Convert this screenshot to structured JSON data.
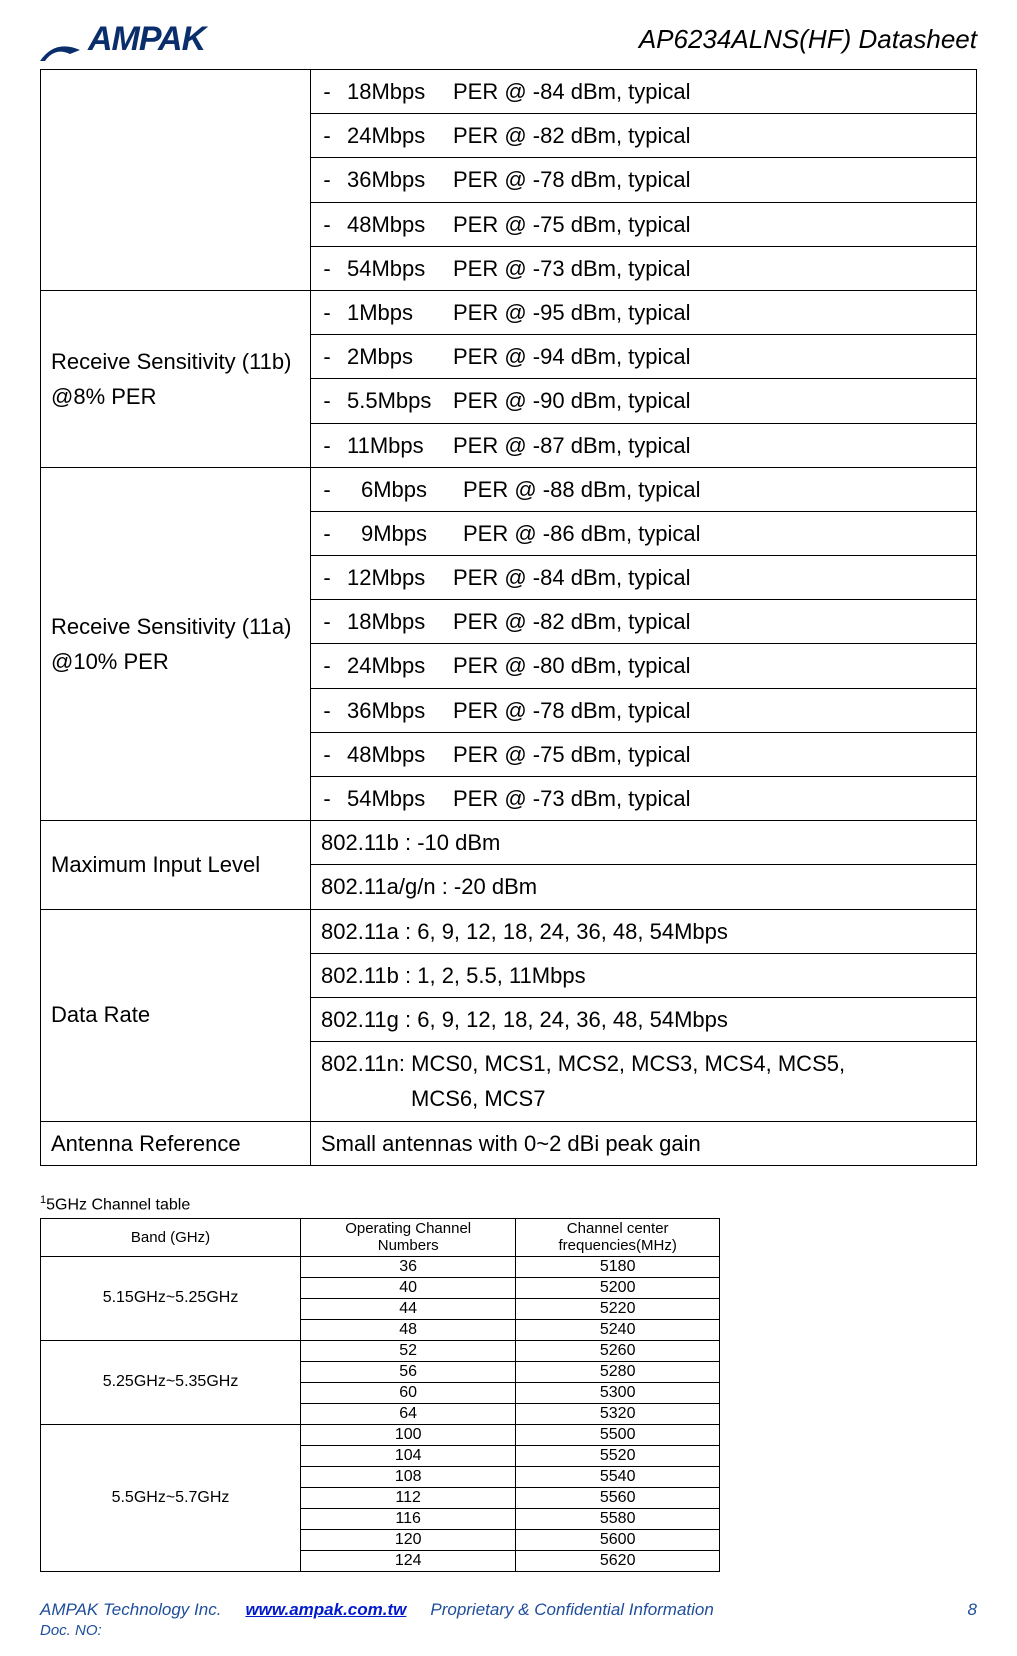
{
  "header": {
    "brand": "AMPAK",
    "title": "AP6234ALNS(HF) Datasheet"
  },
  "specs": {
    "group_11g_rows": [
      {
        "rate": "18Mbps",
        "per": "PER @ -84 dBm, typical"
      },
      {
        "rate": "24Mbps",
        "per": "PER @ -82 dBm, typical"
      },
      {
        "rate": "36Mbps",
        "per": "PER @ -78 dBm, typical"
      },
      {
        "rate": "48Mbps",
        "per": "PER @ -75 dBm, typical"
      },
      {
        "rate": "54Mbps",
        "per": "PER @ -73 dBm, typical"
      }
    ],
    "rx11b_label_l1": "Receive Sensitivity (11b)",
    "rx11b_label_l2": "@8% PER",
    "rx11b_rows": [
      {
        "rate": "1Mbps",
        "per": "PER @ -95 dBm, typical"
      },
      {
        "rate": "2Mbps",
        "per": "PER @ -94 dBm, typical"
      },
      {
        "rate": "5.5Mbps",
        "per": "PER @ -90 dBm, typical"
      },
      {
        "rate": "11Mbps",
        "per": "PER @ -87 dBm, typical"
      }
    ],
    "rx11a_label_l1": "Receive Sensitivity (11a)",
    "rx11a_label_l2": "@10% PER",
    "rx11a_rows": [
      {
        "rate": "6Mbps",
        "per": "PER @ -88 dBm, typical",
        "wide": true
      },
      {
        "rate": "9Mbps",
        "per": "PER @ -86 dBm, typical",
        "wide": true
      },
      {
        "rate": "12Mbps",
        "per": "PER @ -84 dBm, typical"
      },
      {
        "rate": "18Mbps",
        "per": "PER @ -82 dBm, typical"
      },
      {
        "rate": "24Mbps",
        "per": "PER @ -80 dBm, typical"
      },
      {
        "rate": "36Mbps",
        "per": "PER @ -78 dBm, typical"
      },
      {
        "rate": "48Mbps",
        "per": "PER @ -75 dBm, typical"
      },
      {
        "rate": "54Mbps",
        "per": "PER @ -73 dBm, typical"
      }
    ],
    "max_input_label": "Maximum Input Level",
    "max_input_rows": [
      "802.11b : -10 dBm",
      "802.11a/g/n : -20 dBm"
    ],
    "data_rate_label": "Data Rate",
    "data_rate_rows": [
      "802.11a : 6, 9, 12, 18, 24, 36, 48, 54Mbps",
      "802.11b : 1, 2, 5.5, 11Mbps",
      "802.11g : 6, 9, 12, 18, 24, 36, 48, 54Mbps"
    ],
    "data_rate_11n_l1": "802.11n:  MCS0,  MCS1,  MCS2,  MCS3,   MCS4,  MCS5,",
    "data_rate_11n_l2": "MCS6, MCS7",
    "antenna_label": "Antenna Reference",
    "antenna_value": "Small antennas with 0~2 dBi peak gain"
  },
  "channel_table": {
    "title_pre": "1",
    "title": "5GHz Channel table",
    "headers": {
      "band": "Band (GHz)",
      "op_l1": "Operating Channel",
      "op_l2": "Numbers",
      "cf_l1": "Channel center",
      "cf_l2": "frequencies(MHz)"
    },
    "bands": [
      {
        "band": "5.15GHz~5.25GHz",
        "rows": [
          {
            "ch": "36",
            "freq": "5180"
          },
          {
            "ch": "40",
            "freq": "5200"
          },
          {
            "ch": "44",
            "freq": "5220"
          },
          {
            "ch": "48",
            "freq": "5240"
          }
        ]
      },
      {
        "band": "5.25GHz~5.35GHz",
        "rows": [
          {
            "ch": "52",
            "freq": "5260"
          },
          {
            "ch": "56",
            "freq": "5280"
          },
          {
            "ch": "60",
            "freq": "5300"
          },
          {
            "ch": "64",
            "freq": "5320"
          }
        ]
      },
      {
        "band": "5.5GHz~5.7GHz",
        "rows": [
          {
            "ch": "100",
            "freq": "5500"
          },
          {
            "ch": "104",
            "freq": "5520"
          },
          {
            "ch": "108",
            "freq": "5540"
          },
          {
            "ch": "112",
            "freq": "5560"
          },
          {
            "ch": "116",
            "freq": "5580"
          },
          {
            "ch": "120",
            "freq": "5600"
          },
          {
            "ch": "124",
            "freq": "5620"
          }
        ]
      }
    ]
  },
  "footer": {
    "company": "AMPAK Technology Inc.",
    "url": "www.ampak.com.tw",
    "confidential": "Proprietary & Confidential Information",
    "page": "8",
    "docno": "Doc. NO:"
  }
}
